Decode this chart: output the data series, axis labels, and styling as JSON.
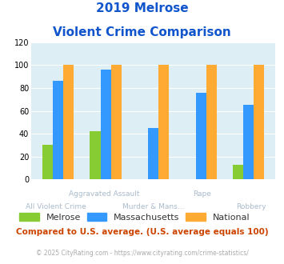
{
  "title_line1": "2019 Melrose",
  "title_line2": "Violent Crime Comparison",
  "categories": [
    "All Violent Crime",
    "Aggravated Assault",
    "Murder & Mans...",
    "Rape",
    "Robbery"
  ],
  "melrose": [
    30,
    42,
    0,
    0,
    13
  ],
  "massachusetts": [
    86,
    96,
    45,
    76,
    65
  ],
  "national": [
    100,
    100,
    100,
    100,
    100
  ],
  "color_melrose": "#88cc33",
  "color_massachusetts": "#3399ff",
  "color_national": "#ffaa33",
  "ylim": [
    0,
    120
  ],
  "yticks": [
    0,
    20,
    40,
    60,
    80,
    100,
    120
  ],
  "plot_bg": "#ddeef5",
  "title_color": "#1155cc",
  "label_color": "#aabbcc",
  "footer_text": "Compared to U.S. average. (U.S. average equals 100)",
  "footer_color": "#cc4400",
  "credit_text": "© 2025 CityRating.com - https://www.cityrating.com/crime-statistics/",
  "credit_color": "#aaaaaa",
  "legend_label_color": "#333333"
}
